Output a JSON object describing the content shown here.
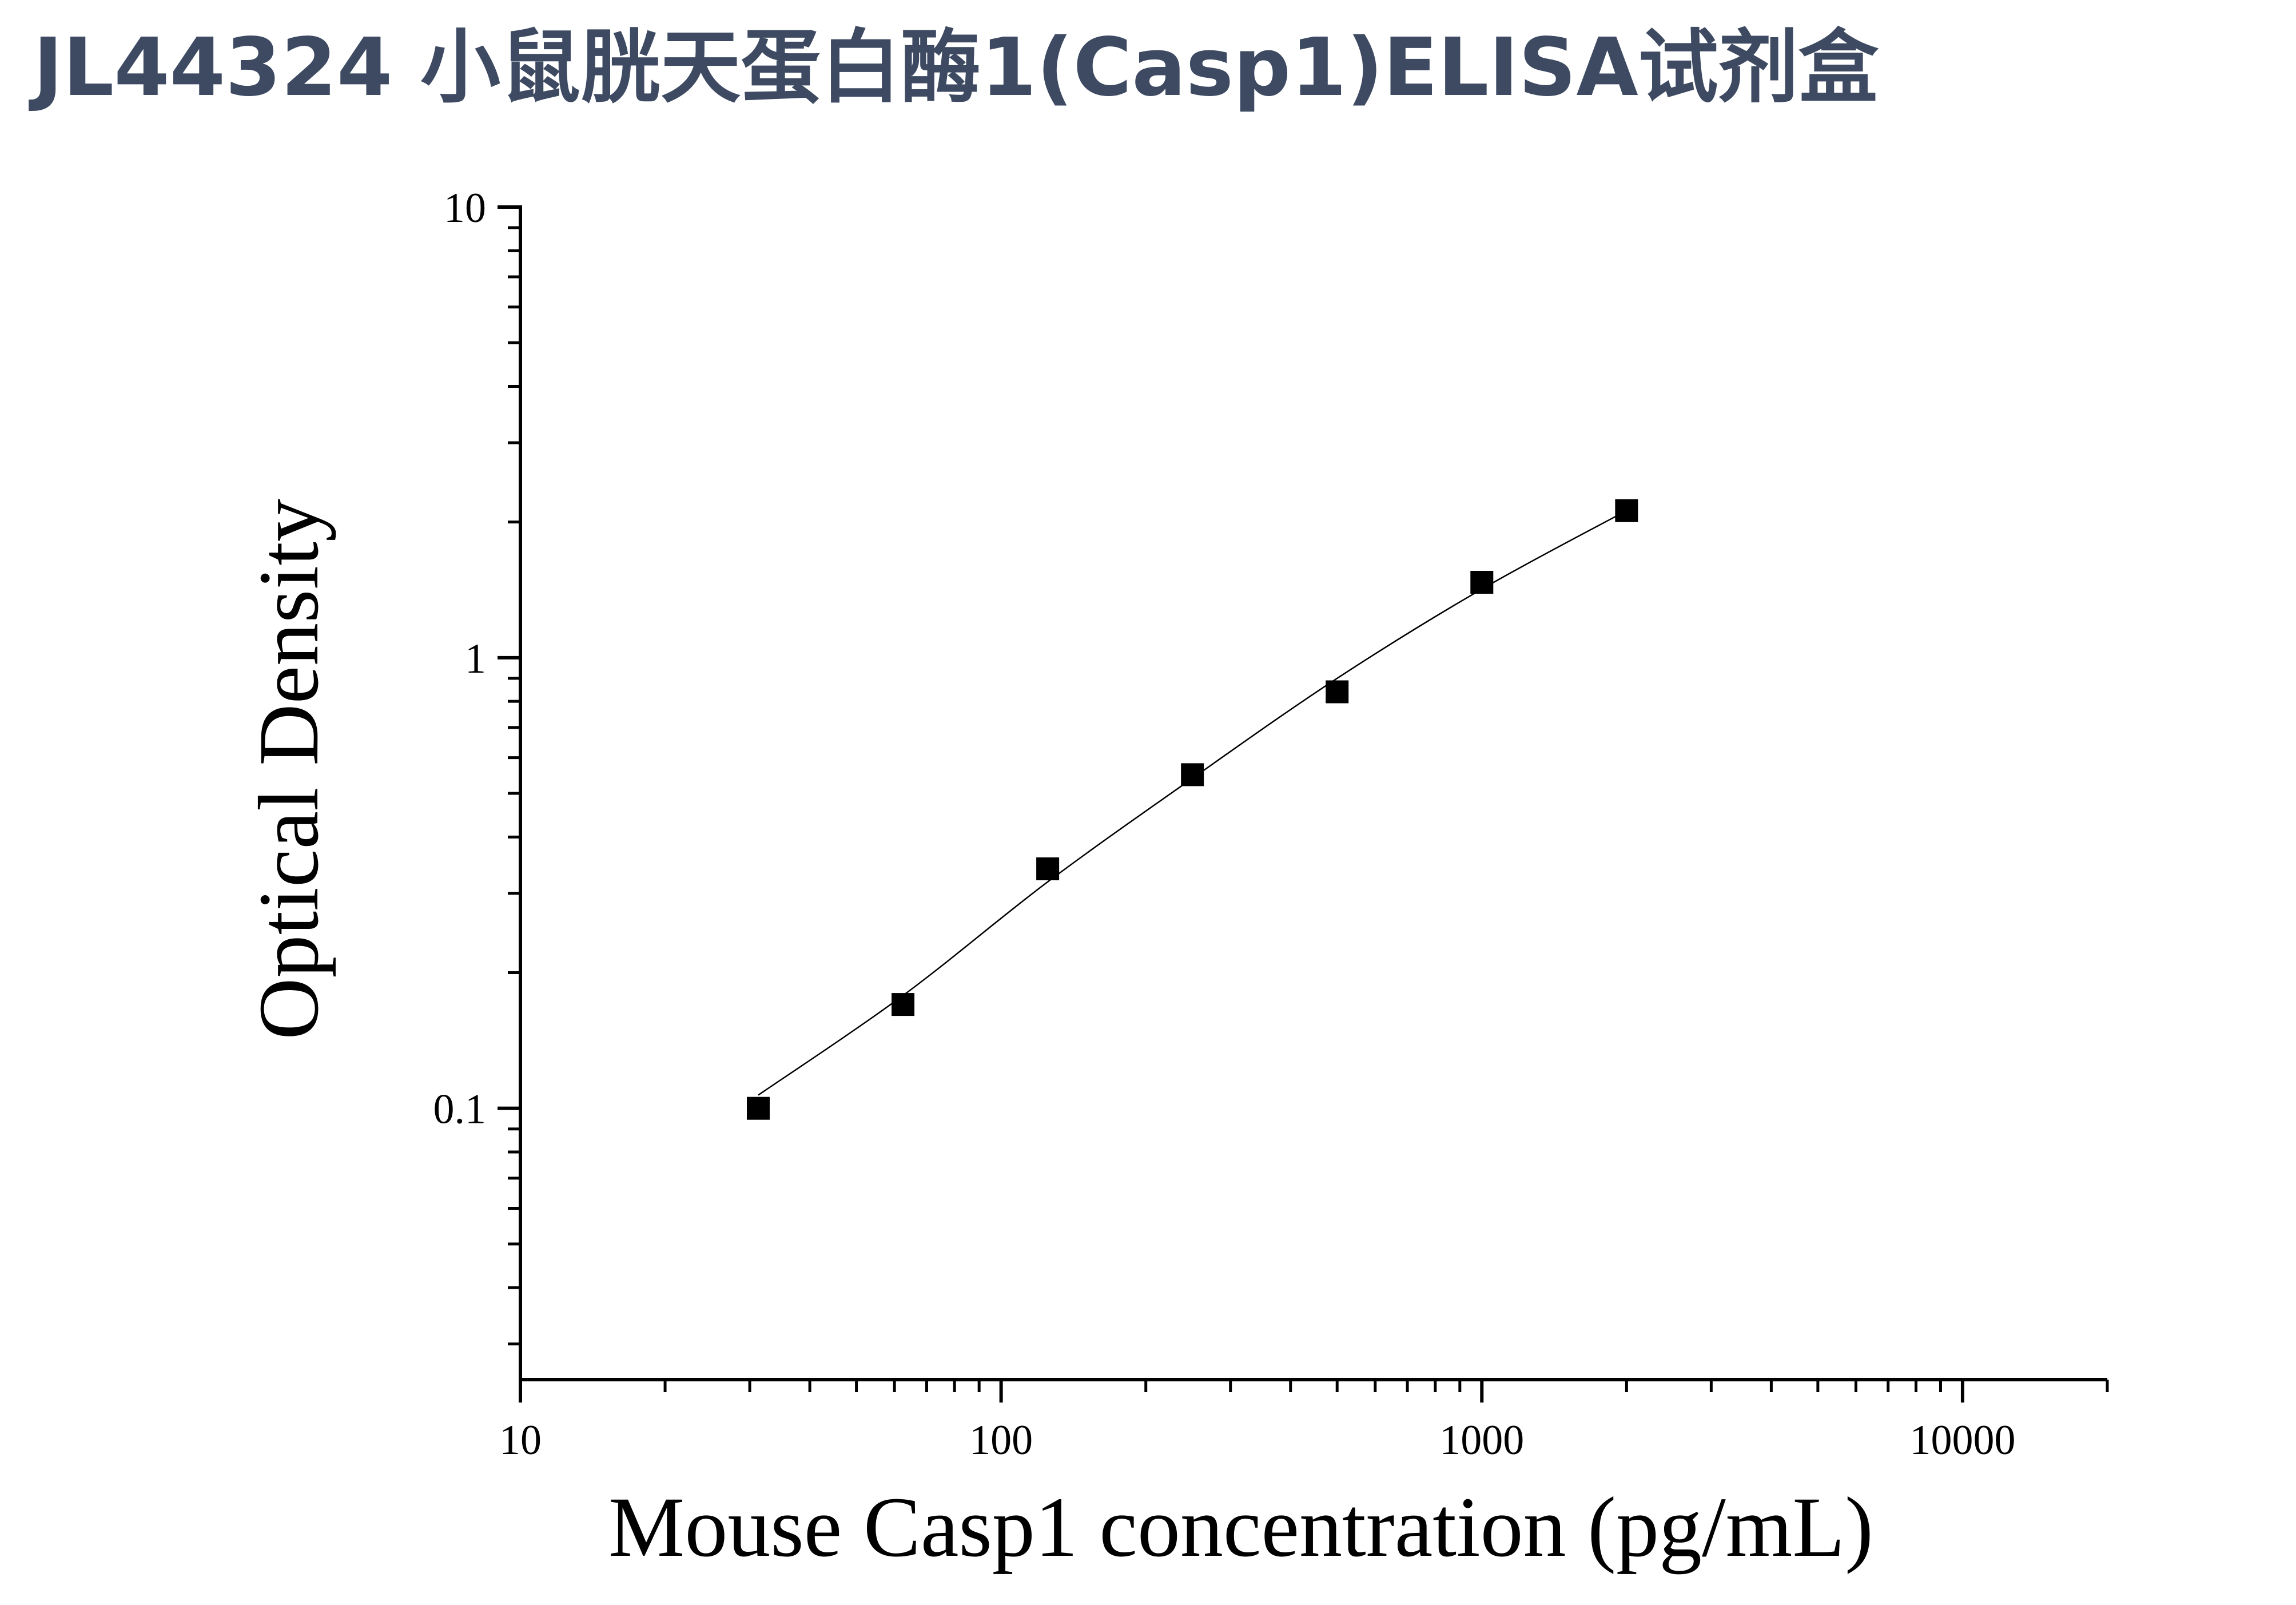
{
  "title": "JL44324 小鼠胱天蛋白酶1(Casp1)ELISA试剂盒",
  "chart_data": {
    "type": "scatter",
    "xlabel": "Mouse Casp1 concentration (pg/mL)",
    "ylabel": "Optical Density",
    "xscale": "log",
    "yscale": "log",
    "xlim": [
      10,
      20000
    ],
    "ylim": [
      0.025,
      10
    ],
    "x_ticks": [
      {
        "value": 10,
        "label": "10"
      },
      {
        "value": 100,
        "label": "100"
      },
      {
        "value": 1000,
        "label": "1000"
      },
      {
        "value": 10000,
        "label": "10000"
      }
    ],
    "y_ticks": [
      {
        "value": 0.1,
        "label": "0.1"
      },
      {
        "value": 1,
        "label": "1"
      },
      {
        "value": 10,
        "label": "10"
      }
    ],
    "grid": false,
    "marker": "square",
    "color": "#000000",
    "series": [
      {
        "x": [
          31.25,
          62.5,
          125,
          250,
          500,
          1000,
          2000
        ],
        "y": [
          0.1,
          0.17,
          0.34,
          0.55,
          0.84,
          1.47,
          2.12
        ]
      }
    ],
    "fit_curve": {
      "x": [
        31.25,
        62.5,
        125,
        250,
        500,
        1000,
        2000
      ],
      "y": [
        0.107,
        0.178,
        0.318,
        0.54,
        0.9,
        1.42,
        2.12
      ]
    }
  }
}
